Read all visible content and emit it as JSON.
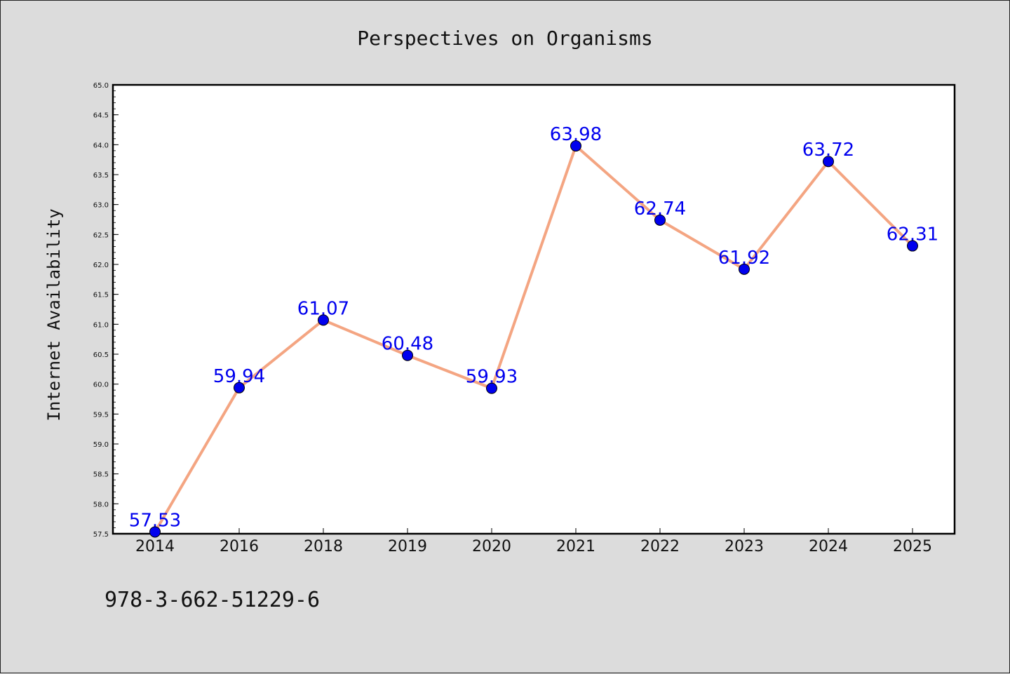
{
  "chart_data": {
    "type": "line",
    "title": "Perspectives on Organisms",
    "xlabel": "",
    "ylabel": "Internet Availability",
    "categories": [
      "2014",
      "2016",
      "2018",
      "2019",
      "2020",
      "2021",
      "2022",
      "2023",
      "2024",
      "2025"
    ],
    "series": [
      {
        "values": [
          57.53,
          59.94,
          61.07,
          60.48,
          59.93,
          63.98,
          62.74,
          61.92,
          63.72,
          62.31
        ],
        "line_color": "#f4a582",
        "marker_color": "#0000ee",
        "data_labels": [
          "57.53",
          "59.94",
          "61.07",
          "60.48",
          "59.93",
          "63.98",
          "62.74",
          "61.92",
          "63.72",
          "62.31"
        ]
      }
    ],
    "ylim": [
      57.5,
      65.0
    ],
    "yticks": [
      "57.5",
      "58.0",
      "58.5",
      "59.0",
      "59.5",
      "60.0",
      "60.5",
      "61.0",
      "61.5",
      "62.0",
      "62.5",
      "63.0",
      "63.5",
      "64.0",
      "64.5",
      "65.0"
    ],
    "grid": false,
    "legend": "none"
  },
  "footnote": "978-3-662-51229-6",
  "colors": {
    "background": "#dcdcdc",
    "plot_background": "#ffffff",
    "axis": "#000000"
  }
}
